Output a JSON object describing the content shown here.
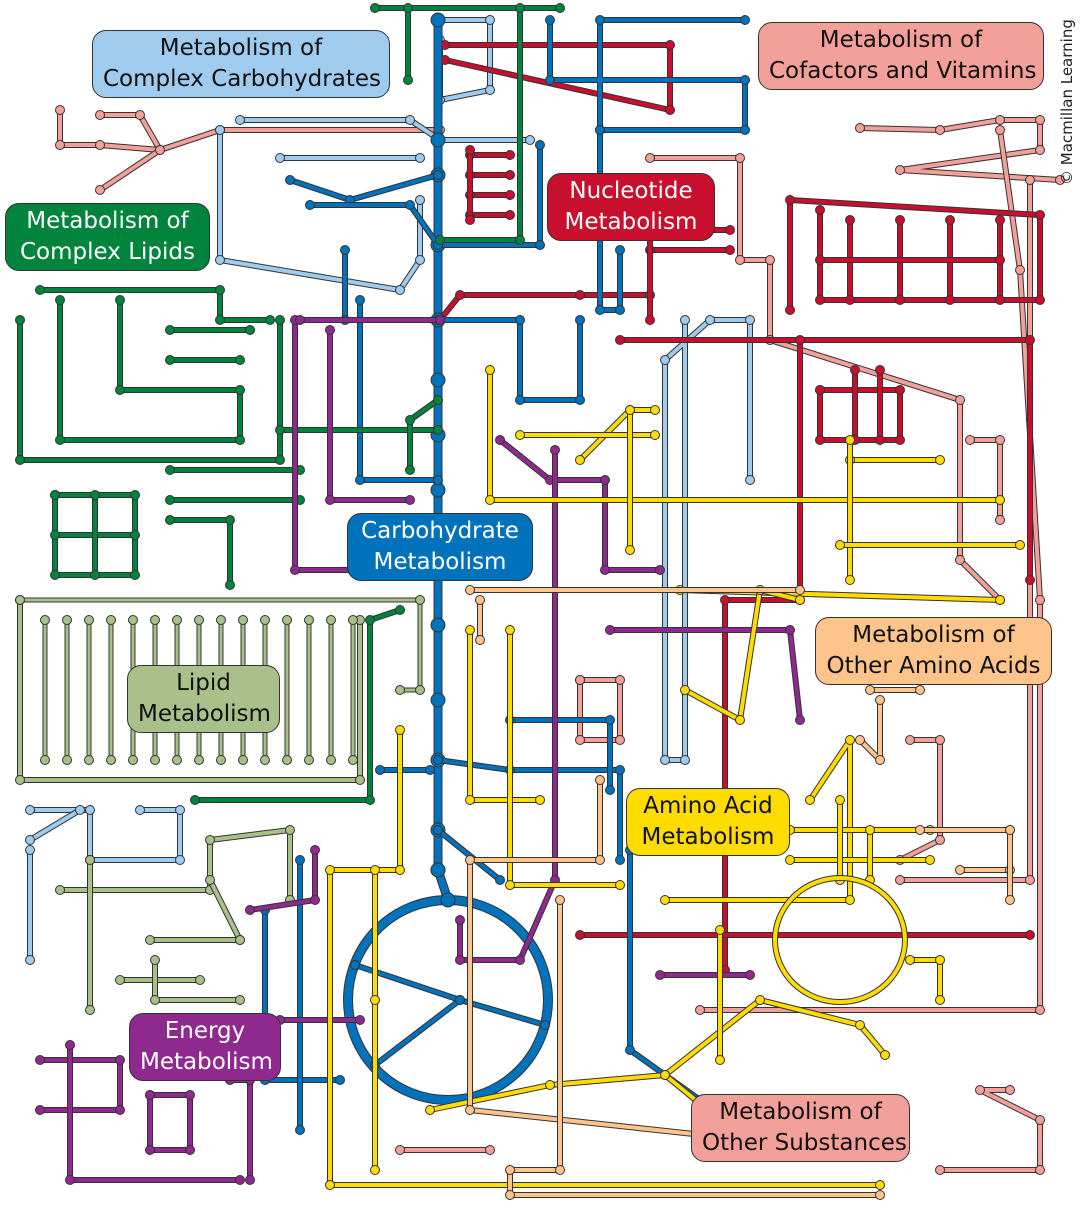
{
  "copyright": "© Macmillan Learning",
  "categories": [
    {
      "id": "complex-carbohydrates",
      "lines": [
        "Metabolism of",
        "Complex Carbohydrates"
      ],
      "color": "#9fcbee",
      "text_color": "#111111"
    },
    {
      "id": "cofactors-vitamins",
      "lines": [
        "Metabolism of",
        "Cofactors and Vitamins"
      ],
      "color": "#f4a09a",
      "text_color": "#111111"
    },
    {
      "id": "nucleotide",
      "lines": [
        "Nucleotide",
        "Metabolism"
      ],
      "color": "#c8102e",
      "text_color": "#ffffff"
    },
    {
      "id": "complex-lipids",
      "lines": [
        "Metabolism of",
        "Complex Lipids"
      ],
      "color": "#00843d",
      "text_color": "#ffffff"
    },
    {
      "id": "carbohydrate",
      "lines": [
        "Carbohydrate",
        "Metabolism"
      ],
      "color": "#0072bc",
      "text_color": "#ffffff"
    },
    {
      "id": "lipid",
      "lines": [
        "Lipid",
        "Metabolism"
      ],
      "color": "#a9c08a",
      "text_color": "#111111"
    },
    {
      "id": "other-amino-acids",
      "lines": [
        "Metabolism of",
        "Other Amino Acids"
      ],
      "color": "#fdc48c",
      "text_color": "#111111"
    },
    {
      "id": "amino-acid",
      "lines": [
        "Amino Acid",
        "Metabolism"
      ],
      "color": "#ffdc00",
      "text_color": "#111111"
    },
    {
      "id": "energy",
      "lines": [
        "Energy",
        "Metabolism"
      ],
      "color": "#8e2a8e",
      "text_color": "#ffffff"
    },
    {
      "id": "other-substances",
      "lines": [
        "Metabolism of",
        "Other Substances"
      ],
      "color": "#f4a09a",
      "text_color": "#111111"
    }
  ]
}
